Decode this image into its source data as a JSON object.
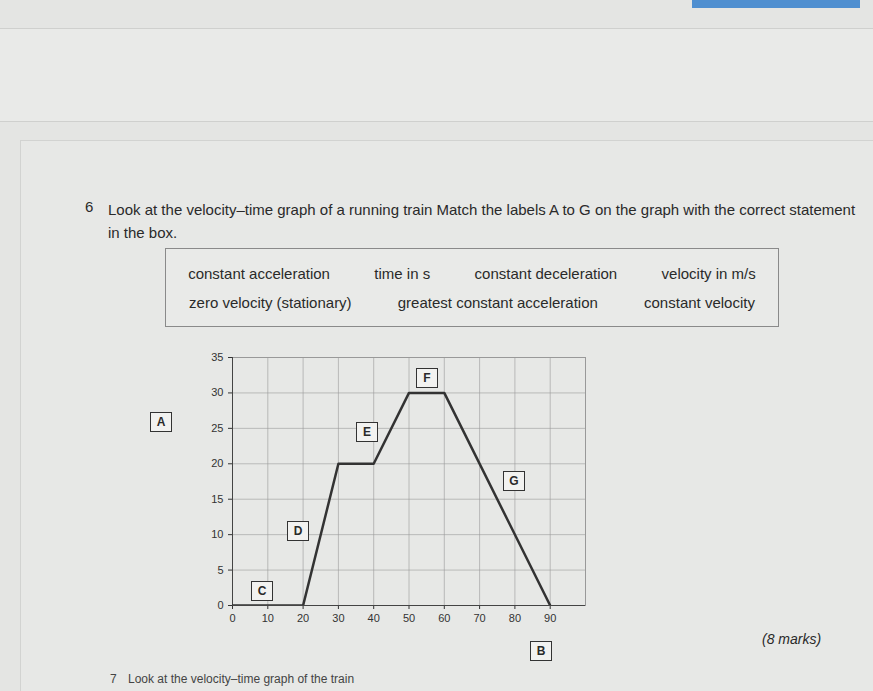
{
  "question": {
    "number": "6",
    "text": "Look at the velocity–time graph of a running train Match the labels A to G on the graph with the correct statement in the box.",
    "box": [
      [
        "constant acceleration",
        "time in s",
        "constant deceleration",
        "velocity in m/s"
      ],
      [
        "zero velocity (stationary)",
        "greatest constant acceleration",
        "constant velocity"
      ]
    ],
    "marks": "(8 marks)",
    "next_number": "7",
    "next_text": "Look at the velocity–time graph of the train"
  },
  "chart_data": {
    "type": "line",
    "x": [
      0,
      20,
      30,
      40,
      50,
      60,
      90
    ],
    "values": [
      0,
      0,
      20,
      20,
      30,
      30,
      0
    ],
    "color": "#333333",
    "xlim": [
      0,
      100
    ],
    "xticks": [
      0,
      10,
      20,
      30,
      40,
      50,
      60,
      70,
      80,
      90
    ],
    "ylim": [
      0,
      35
    ],
    "yticks": [
      0,
      5,
      10,
      15,
      20,
      25,
      30,
      35
    ],
    "grid": true,
    "labels": [
      "A",
      "B",
      "C",
      "D",
      "E",
      "F",
      "G"
    ]
  }
}
